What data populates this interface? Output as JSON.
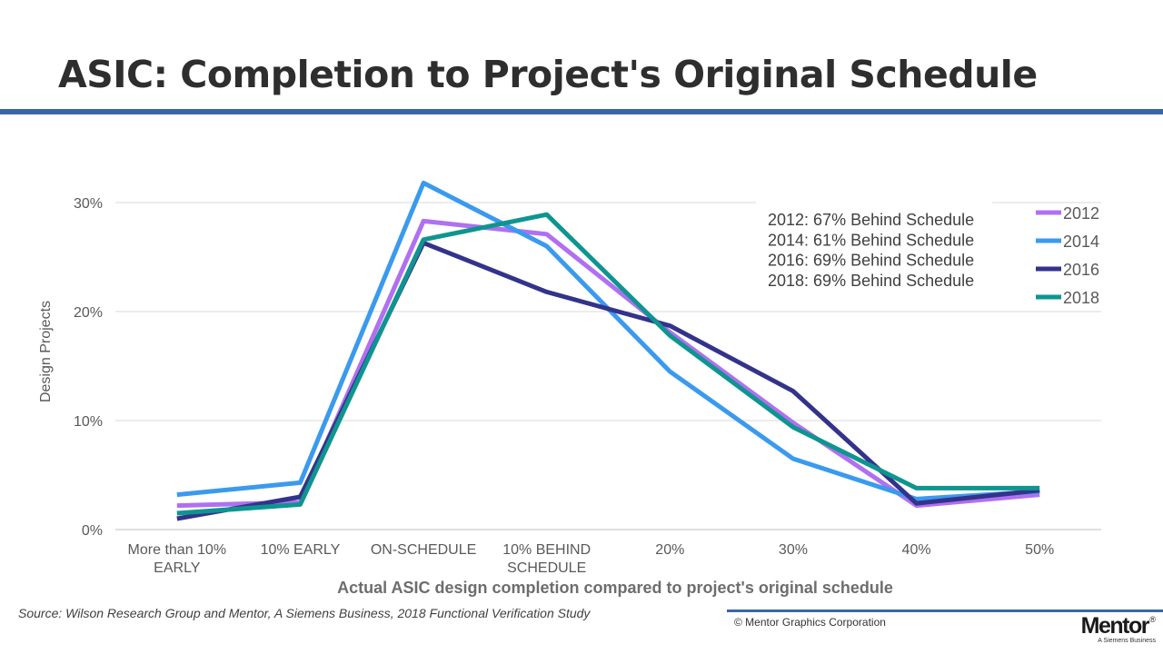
{
  "slide": {
    "title": "ASIC: Completion to Project's Original Schedule",
    "source": "Source:  Wilson Research Group and Mentor, A Siemens Business, 2018 Functional Verification Study",
    "copyright": "© Mentor Graphics Corporation",
    "logo": {
      "name": "Mentor",
      "mark": "®",
      "tagline": "A Siemens Business"
    },
    "colors": {
      "title_rule": "#3a67a4",
      "footer_rule": "#3a67a4"
    }
  },
  "chart_data": {
    "type": "line",
    "title": "",
    "xlabel": "Actual ASIC design completion compared to project's original schedule",
    "ylabel": "Design Projects",
    "ylim": [
      0,
      0.3
    ],
    "y_ticks": [
      0,
      0.1,
      0.2,
      0.3
    ],
    "y_tick_labels": [
      "0%",
      "10%",
      "20%",
      "30%"
    ],
    "grid": true,
    "legend_position": "right",
    "categories": [
      [
        "More than 10%",
        "EARLY"
      ],
      [
        "10% EARLY"
      ],
      [
        "ON-SCHEDULE"
      ],
      [
        "10% BEHIND",
        "SCHEDULE"
      ],
      [
        "20%"
      ],
      [
        "30%"
      ],
      [
        "40%"
      ],
      [
        "50%"
      ]
    ],
    "series": [
      {
        "name": "2012",
        "color": "#b070f0",
        "values": [
          0.022,
          0.025,
          0.283,
          0.271,
          0.181,
          0.098,
          0.022,
          0.032
        ]
      },
      {
        "name": "2014",
        "color": "#3a9aee",
        "values": [
          0.032,
          0.043,
          0.318,
          0.26,
          0.145,
          0.065,
          0.028,
          0.035
        ]
      },
      {
        "name": "2016",
        "color": "#33338c",
        "values": [
          0.01,
          0.03,
          0.263,
          0.218,
          0.187,
          0.127,
          0.024,
          0.036
        ]
      },
      {
        "name": "2018",
        "color": "#0e958f",
        "values": [
          0.015,
          0.023,
          0.266,
          0.289,
          0.178,
          0.094,
          0.038,
          0.038
        ]
      }
    ],
    "annotations": [
      "2012: 67% Behind Schedule",
      "2014: 61% Behind Schedule",
      "2016: 69% Behind Schedule",
      "2018: 69% Behind Schedule"
    ]
  }
}
